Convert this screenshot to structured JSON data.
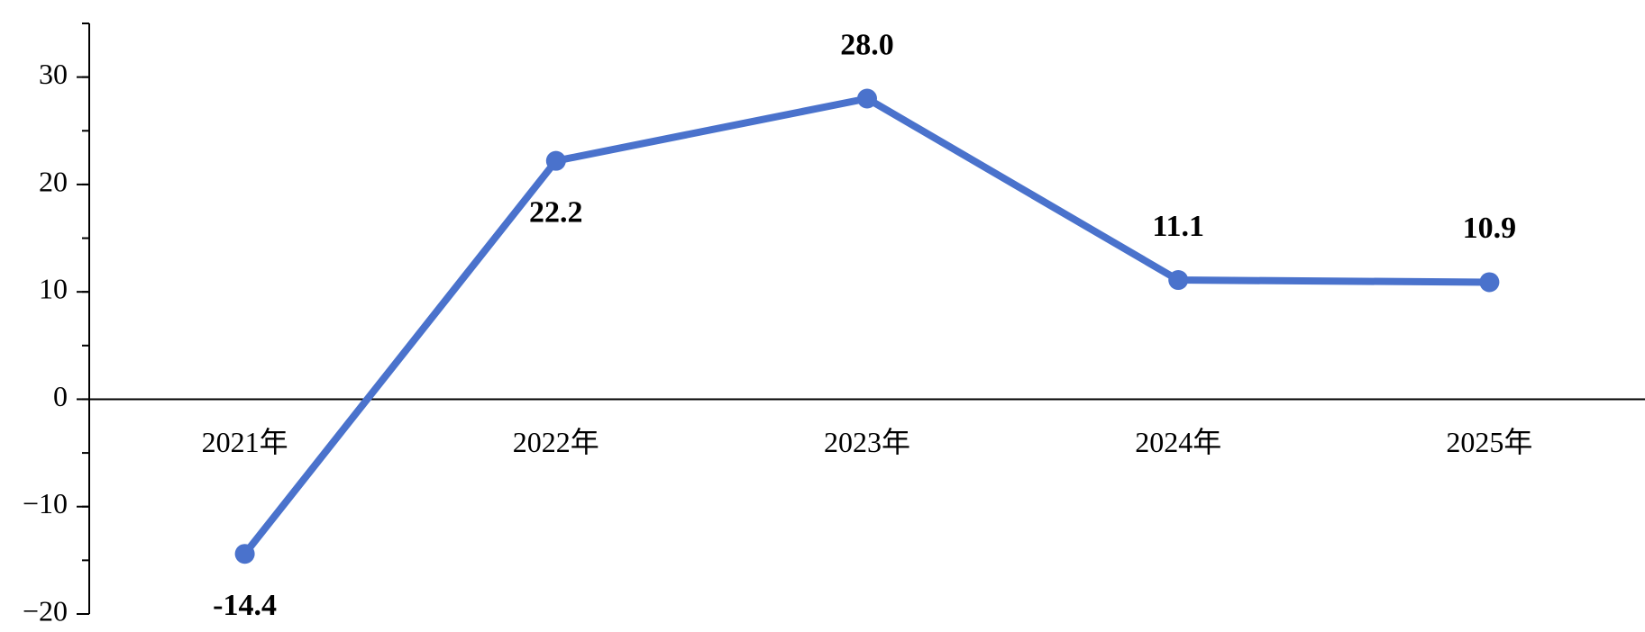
{
  "chart_data": {
    "type": "line",
    "categories": [
      "2021年",
      "2022年",
      "2023年",
      "2024年",
      "2025年"
    ],
    "values": [
      -14.4,
      22.2,
      28.0,
      11.1,
      10.9
    ],
    "value_labels": [
      "-14.4",
      "22.2",
      "28.0",
      "11.1",
      "10.9"
    ],
    "color": "#4a72cc",
    "ylim": [
      -20,
      35
    ],
    "yticks": [
      {
        "value": -20,
        "label": "−20"
      },
      {
        "value": -10,
        "label": "−10"
      },
      0,
      10,
      20,
      30
    ]
  }
}
